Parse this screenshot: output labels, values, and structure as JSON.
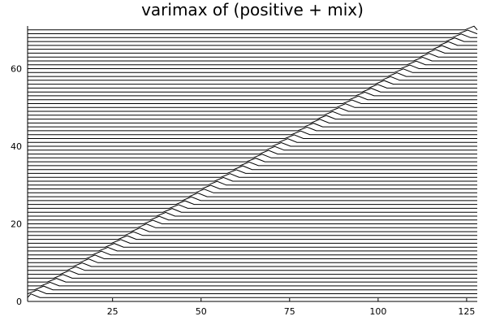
{
  "chart_data": {
    "type": "line",
    "title": "varimax of (positive + mix)",
    "xlabel": "",
    "ylabel": "",
    "xlim": [
      1,
      128
    ],
    "ylim": [
      0,
      71
    ],
    "xticks": [
      25,
      50,
      75,
      100,
      125
    ],
    "yticks": [
      0,
      20,
      40,
      60
    ],
    "legend": "none",
    "grid": false,
    "series_count": 70,
    "series_pattern": "Each of the 70 series is a flat line at level k (k = 1..70) with a single positive triangular bump of height about 1 near x = 1.8k; the bumps form a diagonal running from bottom-left to top-right.",
    "line_color": "#000000"
  }
}
